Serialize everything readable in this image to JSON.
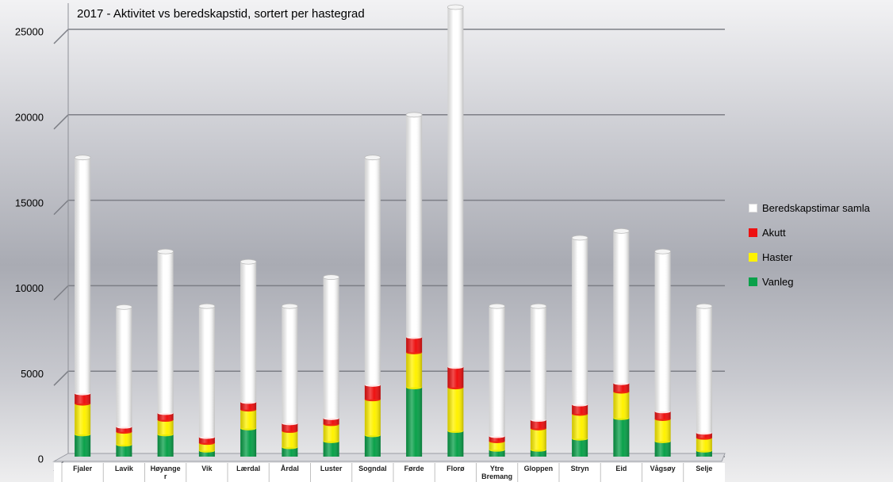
{
  "chart_data": {
    "type": "bar",
    "stacked": true,
    "title": "2017 - Aktivitet vs beredskapstid, sortert per hastegrad",
    "xlabel": "",
    "ylabel": "",
    "ylim": [
      0,
      27000
    ],
    "yticks": [
      0,
      5000,
      10000,
      15000,
      20000,
      25000
    ],
    "grid": true,
    "legend_position": "right",
    "categories": [
      "Fjaler",
      "Lavik",
      "Høyange\nr",
      "Vik",
      "Lærdal",
      "Årdal",
      "Luster",
      "Sogndal",
      "Førde",
      "Florø",
      "Ytre\nBremang",
      "Gloppen",
      "Stryn",
      "Eid",
      "Vågsøy",
      "Selje"
    ],
    "series": [
      {
        "name": "Vanleg",
        "color": "#0aa14a",
        "values": [
          1300,
          700,
          1300,
          350,
          1650,
          550,
          900,
          1250,
          4050,
          1500,
          400,
          400,
          1050,
          2250,
          900,
          350
        ]
      },
      {
        "name": "Haster",
        "color": "#fff200",
        "values": [
          1800,
          750,
          850,
          450,
          1100,
          950,
          1000,
          2100,
          2050,
          2550,
          500,
          1250,
          1450,
          1550,
          1300,
          750
        ]
      },
      {
        "name": "Akutt",
        "color": "#ee1111",
        "values": [
          600,
          300,
          400,
          350,
          450,
          450,
          350,
          850,
          900,
          1200,
          300,
          500,
          550,
          500,
          450,
          300
        ]
      },
      {
        "name": "Beredskapstimar samla",
        "color": "#ffffff",
        "values": [
          13800,
          7000,
          9450,
          7650,
          8200,
          6850,
          8250,
          13300,
          13000,
          21050,
          7600,
          6650,
          9750,
          8900,
          9350,
          7400
        ]
      }
    ]
  },
  "legend_order": [
    "Beredskapstimar samla",
    "Akutt",
    "Haster",
    "Vanleg"
  ]
}
